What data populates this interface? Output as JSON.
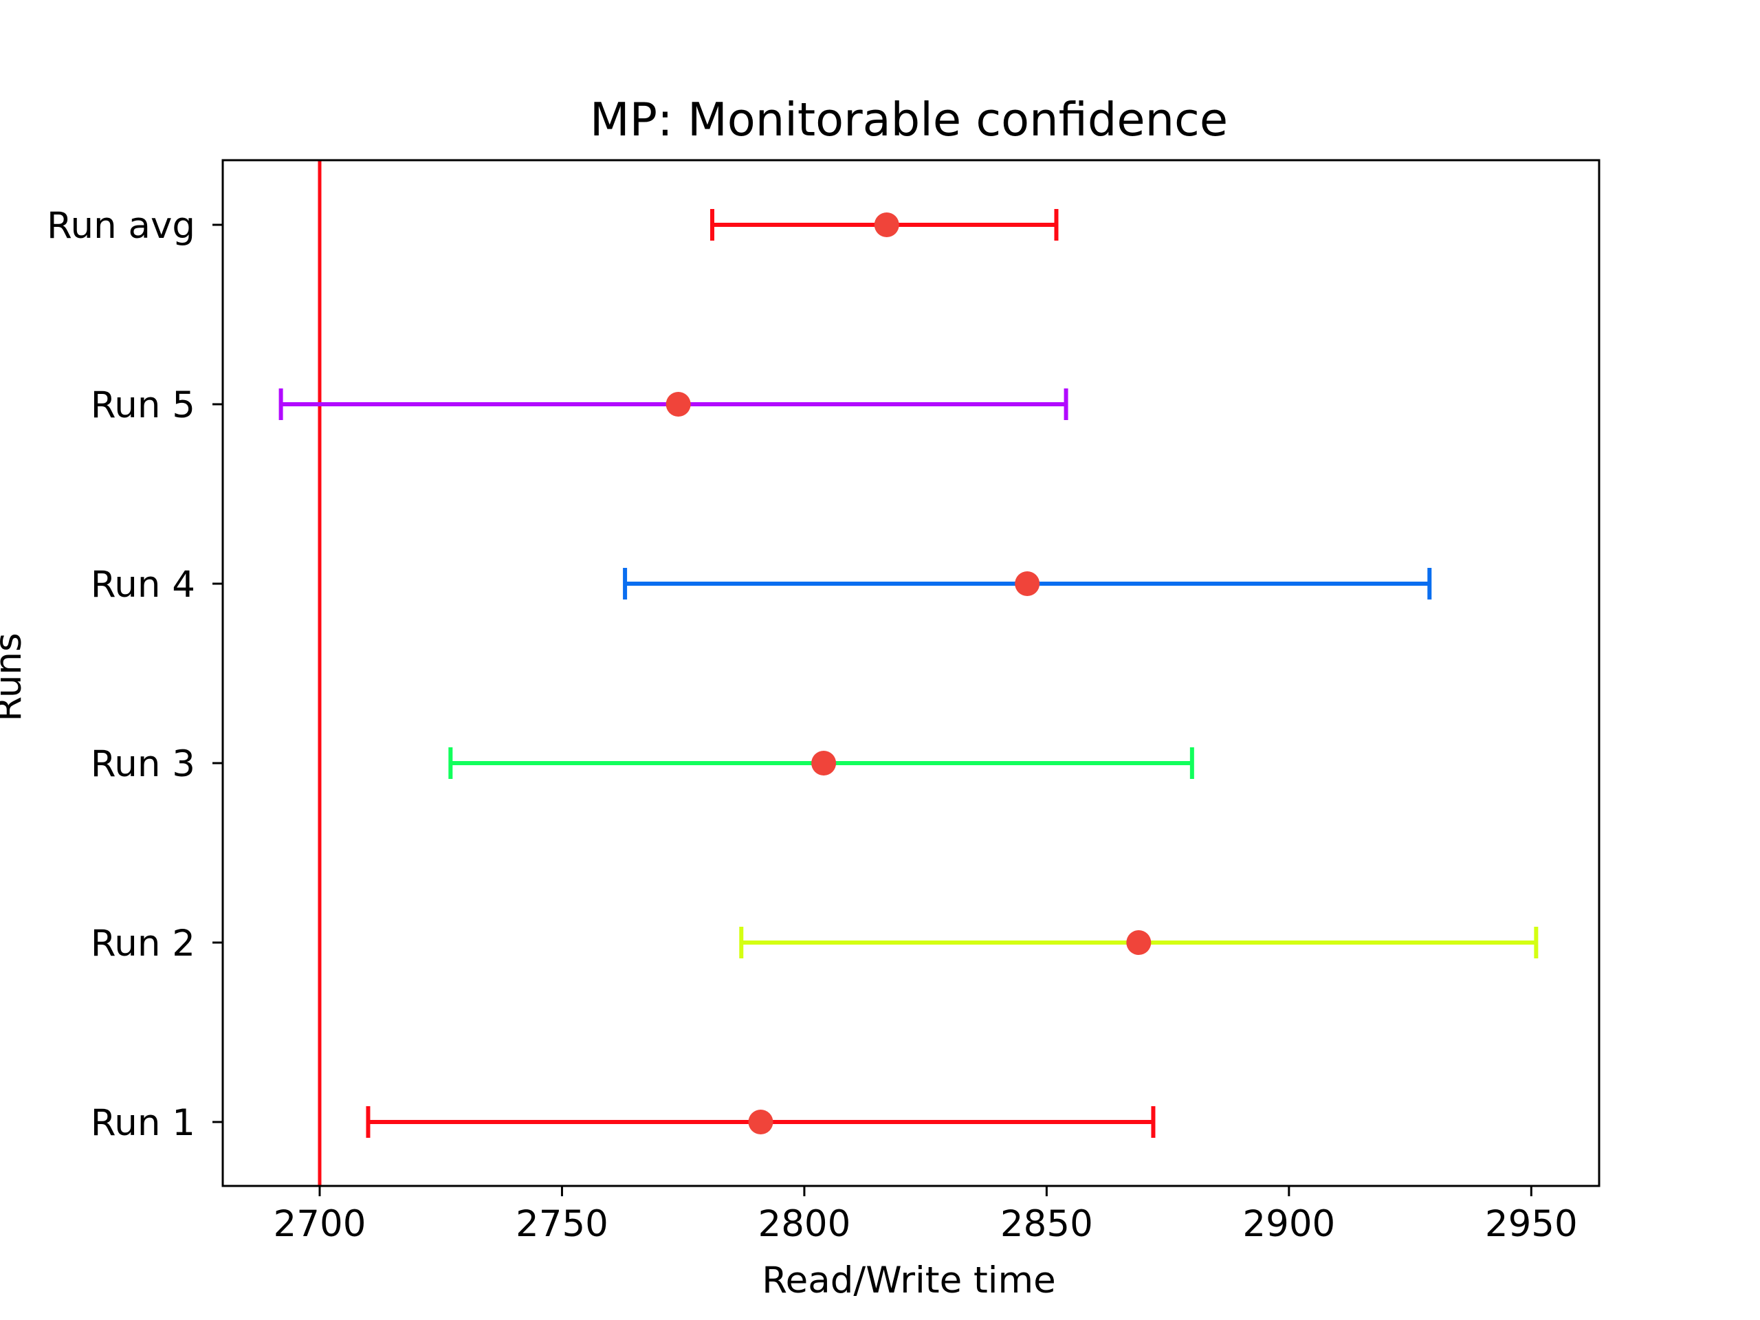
{
  "chart_data": {
    "type": "errorbar",
    "title": "MP: Monitorable confidence",
    "xlabel": "Read/Write time",
    "ylabel": "Runs",
    "xlim": [
      2680,
      2964
    ],
    "xticks": [
      2700,
      2750,
      2800,
      2850,
      2900,
      2950
    ],
    "categories": [
      "Run 1",
      "Run 2",
      "Run 3",
      "Run 4",
      "Run 5",
      "Run avg"
    ],
    "series": [
      {
        "category": "Run 1",
        "mean": 2791,
        "low": 2710,
        "high": 2872,
        "color": "#ff0a14"
      },
      {
        "category": "Run 2",
        "mean": 2869,
        "low": 2787,
        "high": 2951,
        "color": "#d4ff12"
      },
      {
        "category": "Run 3",
        "mean": 2804,
        "low": 2727,
        "high": 2880,
        "color": "#12ff5c"
      },
      {
        "category": "Run 4",
        "mean": 2846,
        "low": 2763,
        "high": 2929,
        "color": "#0a6ef0"
      },
      {
        "category": "Run 5",
        "mean": 2774,
        "low": 2692,
        "high": 2854,
        "color": "#b20aff"
      },
      {
        "category": "Run avg",
        "mean": 2817,
        "low": 2781,
        "high": 2852,
        "color": "#ff0a14"
      }
    ],
    "marker_color": "#f0443a",
    "reference_line": {
      "x": 2700,
      "color": "#ff0a14"
    },
    "grid": false,
    "legend": "none"
  }
}
